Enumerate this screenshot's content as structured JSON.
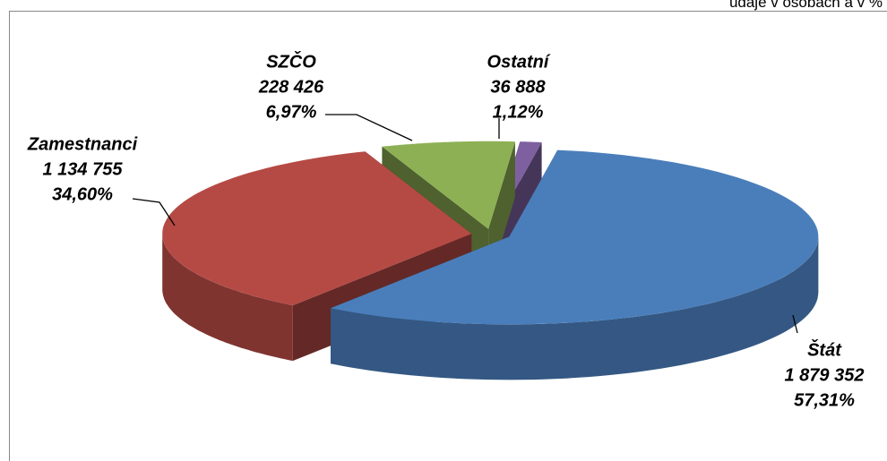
{
  "chart_data": {
    "type": "pie",
    "subtitle": "údaje v osobách a v %",
    "categories": [
      "Štát",
      "Zamestnanci",
      "SZČO",
      "Ostatní"
    ],
    "values": [
      1879352,
      1134755,
      228426,
      36888
    ],
    "value_labels": [
      "1 879 352",
      "1 134 755",
      "228 426",
      "36 888"
    ],
    "percentages": [
      57.31,
      34.6,
      6.97,
      1.12
    ],
    "percentage_labels": [
      "57,31%",
      "34,60%",
      "6,97%",
      "1,12%"
    ],
    "colors": [
      "#4a7ebb",
      "#b54a45",
      "#8db054",
      "#7e60a0"
    ]
  }
}
